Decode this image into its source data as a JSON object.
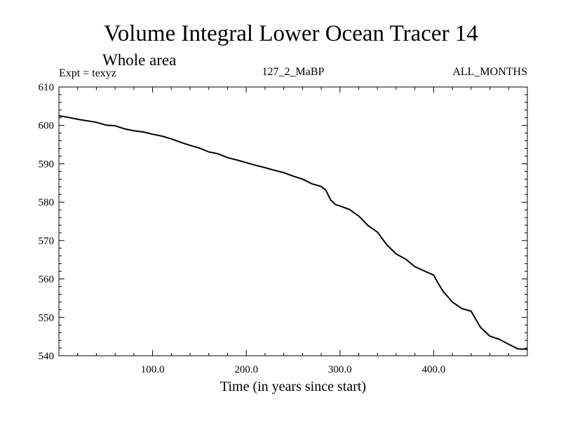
{
  "chart_data": {
    "type": "line",
    "title": "Volume Integral Lower Ocean Tracer 14",
    "subtitle": "Whole area",
    "experiment": "Expt = texyz",
    "run_label": "127_2_MaBP",
    "period_label": "ALL_MONTHS",
    "xlabel": "Time (in years since start)",
    "ylabel": "",
    "xlim": [
      0,
      500
    ],
    "ylim": [
      540,
      610
    ],
    "xticks": [
      100,
      200,
      300,
      400
    ],
    "xtick_labels": [
      "100.0",
      "200.0",
      "300.0",
      "400.0"
    ],
    "yticks": [
      540,
      550,
      560,
      570,
      580,
      590,
      600,
      610
    ],
    "ytick_labels": [
      "540",
      "550",
      "560",
      "570",
      "580",
      "590",
      "600",
      "610"
    ],
    "grid": false,
    "series": [
      {
        "x": [
          0,
          10,
          20,
          30,
          40,
          50,
          60,
          70,
          80,
          90,
          100,
          110,
          120,
          130,
          140,
          150,
          160,
          170,
          180,
          190,
          200,
          210,
          220,
          230,
          240,
          250,
          260,
          270,
          280,
          285,
          290,
          295,
          300,
          310,
          320,
          330,
          340,
          350,
          360,
          370,
          380,
          390,
          400,
          405,
          410,
          420,
          430,
          440,
          450,
          460,
          470,
          480,
          490,
          500
        ],
        "y": [
          602.5,
          602.1,
          601.6,
          601.2,
          600.8,
          600.1,
          599.9,
          599.1,
          598.6,
          598.3,
          597.7,
          597.2,
          596.5,
          595.6,
          594.8,
          594.1,
          593.1,
          592.6,
          591.6,
          591.0,
          590.3,
          589.6,
          589.0,
          588.3,
          587.7,
          586.8,
          586.0,
          584.8,
          584.1,
          583.1,
          580.6,
          579.4,
          579.0,
          578.1,
          576.4,
          573.9,
          572.2,
          568.9,
          566.5,
          565.2,
          563.2,
          562.1,
          561.0,
          558.8,
          556.8,
          554.0,
          552.3,
          551.6,
          547.4,
          545.1,
          544.3,
          543.0,
          541.8,
          541.7
        ]
      }
    ]
  }
}
